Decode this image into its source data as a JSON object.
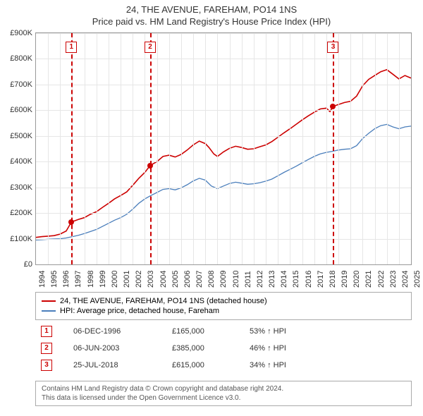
{
  "title_line1": "24, THE AVENUE, FAREHAM, PO14 1NS",
  "title_line2": "Price paid vs. HM Land Registry's House Price Index (HPI)",
  "chart": {
    "type": "line",
    "bg": "#ffffff",
    "grid_color": "#e6e6e6",
    "border_color": "#999999",
    "xmin": 1994,
    "xmax": 2025,
    "ymin": 0,
    "ymax": 900000,
    "ytick_step": 100000,
    "yticks": [
      "£0",
      "£100K",
      "£200K",
      "£300K",
      "£400K",
      "£500K",
      "£600K",
      "£700K",
      "£800K",
      "£900K"
    ],
    "xticks": [
      1994,
      1995,
      1996,
      1997,
      1998,
      1999,
      2000,
      2001,
      2002,
      2003,
      2004,
      2005,
      2006,
      2007,
      2008,
      2009,
      2010,
      2011,
      2012,
      2013,
      2014,
      2015,
      2016,
      2017,
      2018,
      2019,
      2020,
      2021,
      2022,
      2023,
      2024,
      2025
    ],
    "series": [
      {
        "name": "24, THE AVENUE, FAREHAM, PO14 1NS (detached house)",
        "color": "#cc0000",
        "width": 1.6,
        "points": [
          [
            1994.0,
            105000
          ],
          [
            1994.5,
            108000
          ],
          [
            1995.0,
            110000
          ],
          [
            1995.5,
            112000
          ],
          [
            1996.0,
            118000
          ],
          [
            1996.5,
            130000
          ],
          [
            1996.93,
            165000
          ],
          [
            1997.5,
            175000
          ],
          [
            1998.0,
            182000
          ],
          [
            1998.5,
            195000
          ],
          [
            1999.0,
            205000
          ],
          [
            1999.5,
            222000
          ],
          [
            2000.0,
            238000
          ],
          [
            2000.5,
            255000
          ],
          [
            2001.0,
            268000
          ],
          [
            2001.5,
            282000
          ],
          [
            2002.0,
            308000
          ],
          [
            2002.5,
            335000
          ],
          [
            2003.0,
            358000
          ],
          [
            2003.44,
            385000
          ],
          [
            2004.0,
            400000
          ],
          [
            2004.5,
            420000
          ],
          [
            2005.0,
            425000
          ],
          [
            2005.5,
            418000
          ],
          [
            2006.0,
            428000
          ],
          [
            2006.5,
            445000
          ],
          [
            2007.0,
            465000
          ],
          [
            2007.5,
            480000
          ],
          [
            2008.0,
            470000
          ],
          [
            2008.3,
            455000
          ],
          [
            2008.7,
            430000
          ],
          [
            2009.0,
            420000
          ],
          [
            2009.5,
            438000
          ],
          [
            2010.0,
            452000
          ],
          [
            2010.5,
            460000
          ],
          [
            2011.0,
            455000
          ],
          [
            2011.5,
            448000
          ],
          [
            2012.0,
            450000
          ],
          [
            2012.5,
            458000
          ],
          [
            2013.0,
            465000
          ],
          [
            2013.5,
            478000
          ],
          [
            2014.0,
            495000
          ],
          [
            2014.5,
            512000
          ],
          [
            2015.0,
            528000
          ],
          [
            2015.5,
            545000
          ],
          [
            2016.0,
            562000
          ],
          [
            2016.5,
            578000
          ],
          [
            2017.0,
            592000
          ],
          [
            2017.5,
            605000
          ],
          [
            2018.0,
            608000
          ],
          [
            2018.3,
            595000
          ],
          [
            2018.56,
            615000
          ],
          [
            2019.0,
            622000
          ],
          [
            2019.5,
            630000
          ],
          [
            2020.0,
            635000
          ],
          [
            2020.5,
            655000
          ],
          [
            2021.0,
            695000
          ],
          [
            2021.5,
            720000
          ],
          [
            2022.0,
            735000
          ],
          [
            2022.5,
            750000
          ],
          [
            2023.0,
            758000
          ],
          [
            2023.5,
            740000
          ],
          [
            2024.0,
            722000
          ],
          [
            2024.5,
            735000
          ],
          [
            2025.0,
            725000
          ]
        ]
      },
      {
        "name": "HPI: Average price, detached house, Fareham",
        "color": "#4a7ebb",
        "width": 1.3,
        "points": [
          [
            1994.0,
            95000
          ],
          [
            1994.5,
            96000
          ],
          [
            1995.0,
            98000
          ],
          [
            1995.5,
            99000
          ],
          [
            1996.0,
            100000
          ],
          [
            1996.5,
            103000
          ],
          [
            1997.0,
            108000
          ],
          [
            1997.5,
            113000
          ],
          [
            1998.0,
            120000
          ],
          [
            1998.5,
            128000
          ],
          [
            1999.0,
            136000
          ],
          [
            1999.5,
            148000
          ],
          [
            2000.0,
            160000
          ],
          [
            2000.5,
            172000
          ],
          [
            2001.0,
            182000
          ],
          [
            2001.5,
            195000
          ],
          [
            2002.0,
            215000
          ],
          [
            2002.5,
            238000
          ],
          [
            2003.0,
            255000
          ],
          [
            2003.5,
            268000
          ],
          [
            2004.0,
            280000
          ],
          [
            2004.5,
            292000
          ],
          [
            2005.0,
            295000
          ],
          [
            2005.5,
            290000
          ],
          [
            2006.0,
            298000
          ],
          [
            2006.5,
            310000
          ],
          [
            2007.0,
            325000
          ],
          [
            2007.5,
            335000
          ],
          [
            2008.0,
            328000
          ],
          [
            2008.5,
            305000
          ],
          [
            2009.0,
            295000
          ],
          [
            2009.5,
            305000
          ],
          [
            2010.0,
            315000
          ],
          [
            2010.5,
            320000
          ],
          [
            2011.0,
            316000
          ],
          [
            2011.5,
            312000
          ],
          [
            2012.0,
            314000
          ],
          [
            2012.5,
            318000
          ],
          [
            2013.0,
            324000
          ],
          [
            2013.5,
            332000
          ],
          [
            2014.0,
            345000
          ],
          [
            2014.5,
            358000
          ],
          [
            2015.0,
            370000
          ],
          [
            2015.5,
            382000
          ],
          [
            2016.0,
            395000
          ],
          [
            2016.5,
            408000
          ],
          [
            2017.0,
            420000
          ],
          [
            2017.5,
            430000
          ],
          [
            2018.0,
            436000
          ],
          [
            2018.5,
            440000
          ],
          [
            2019.0,
            445000
          ],
          [
            2019.5,
            448000
          ],
          [
            2020.0,
            450000
          ],
          [
            2020.5,
            462000
          ],
          [
            2021.0,
            490000
          ],
          [
            2021.5,
            510000
          ],
          [
            2022.0,
            528000
          ],
          [
            2022.5,
            540000
          ],
          [
            2023.0,
            545000
          ],
          [
            2023.5,
            535000
          ],
          [
            2024.0,
            528000
          ],
          [
            2024.5,
            535000
          ],
          [
            2025.0,
            538000
          ]
        ]
      }
    ],
    "markers": [
      {
        "num": "1",
        "x": 1996.93,
        "y": 165000,
        "label_y_top": 12
      },
      {
        "num": "2",
        "x": 2003.44,
        "y": 385000,
        "label_y_top": 12
      },
      {
        "num": "3",
        "x": 2018.56,
        "y": 615000,
        "label_y_top": 12
      }
    ],
    "marker_line_color": "#cc0000",
    "dot_color": "#cc0000"
  },
  "legend": {
    "items": [
      {
        "color": "#cc0000",
        "label": "24, THE AVENUE, FAREHAM, PO14 1NS (detached house)"
      },
      {
        "color": "#4a7ebb",
        "label": "HPI: Average price, detached house, Fareham"
      }
    ]
  },
  "events": [
    {
      "num": "1",
      "date": "06-DEC-1996",
      "price": "£165,000",
      "pct": "53% ↑ HPI"
    },
    {
      "num": "2",
      "date": "06-JUN-2003",
      "price": "£385,000",
      "pct": "46% ↑ HPI"
    },
    {
      "num": "3",
      "date": "25-JUL-2018",
      "price": "£615,000",
      "pct": "34% ↑ HPI"
    }
  ],
  "license": {
    "line1": "Contains HM Land Registry data © Crown copyright and database right 2024.",
    "line2": "This data is licensed under the Open Government Licence v3.0."
  }
}
